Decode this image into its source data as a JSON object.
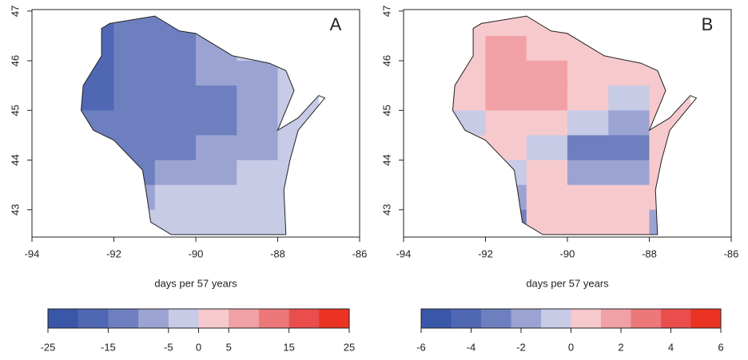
{
  "chart_data": [
    {
      "type": "map",
      "label": "A",
      "xlabel": "days per 57 years",
      "xlim": [
        -94,
        -86
      ],
      "ylim": [
        42.45,
        47.03
      ],
      "xticks": [
        -94,
        -92,
        -90,
        -88,
        -86
      ],
      "yticks": [
        43,
        44,
        45,
        46,
        47
      ],
      "cell_lon": [
        -92.5,
        -91.5,
        -90.5,
        -89.5,
        -88.5,
        -87.5
      ],
      "cell_lat": [
        46.75,
        46.25,
        45.75,
        45.25,
        44.75,
        44.25,
        43.75,
        43.25,
        42.75
      ],
      "values": [
        [
          -18,
          -15,
          -12,
          -8,
          -5,
          -3
        ],
        [
          -20,
          -15,
          -12,
          -8,
          -5,
          0
        ],
        [
          -20,
          -15,
          -13,
          -10,
          -7,
          -3
        ],
        [
          -18,
          -15,
          -13,
          -12,
          -8,
          -3
        ],
        [
          -15,
          -15,
          -14,
          -12,
          -8,
          -3
        ],
        [
          -15,
          -15,
          -12,
          -10,
          -7,
          -3
        ],
        [
          -12,
          -12,
          -10,
          -8,
          -5,
          -3
        ],
        [
          -10,
          -8,
          -5,
          -5,
          -3,
          -3
        ],
        [
          -5,
          -5,
          -3,
          -3,
          -3,
          -3
        ]
      ],
      "colorbar": {
        "lim": [
          -25,
          25
        ],
        "ticks": [
          -25,
          -15,
          -5,
          0,
          5,
          15,
          25
        ],
        "colors": [
          "#3a56a8",
          "#5068b4",
          "#6e7fc0",
          "#9aa3d2",
          "#c8cbe6",
          "#f6c9cd",
          "#f1a0a5",
          "#ec7879",
          "#e94e4c",
          "#ea3323"
        ]
      }
    },
    {
      "type": "map",
      "label": "B",
      "xlabel": "days per 57 years",
      "xlim": [
        -94,
        -86
      ],
      "ylim": [
        42.45,
        47.03
      ],
      "xticks": [
        -94,
        -92,
        -90,
        -88,
        -86
      ],
      "yticks": [
        43,
        44,
        45,
        46,
        47
      ],
      "cell_lon": [
        -92.5,
        -91.5,
        -90.5,
        -89.5,
        -88.5,
        -87.5
      ],
      "cell_lat": [
        46.75,
        46.25,
        45.75,
        45.25,
        44.75,
        44.25,
        43.75,
        43.25,
        42.75
      ],
      "values": [
        [
          0,
          1,
          1,
          0.5,
          0.5,
          0
        ],
        [
          1,
          2,
          1,
          1,
          0.5,
          1
        ],
        [
          1,
          2,
          2,
          1,
          0.5,
          0.5
        ],
        [
          0,
          2,
          2,
          0,
          -1,
          0.5
        ],
        [
          -1,
          1,
          1,
          -1,
          -2,
          0
        ],
        [
          0,
          0,
          -1,
          -3,
          -3,
          1
        ],
        [
          -1,
          -1,
          0,
          -2,
          -2,
          1
        ],
        [
          -3,
          -2,
          0,
          0,
          1,
          0
        ],
        [
          -4,
          -3,
          0,
          1,
          0,
          -2
        ]
      ],
      "colorbar": {
        "lim": [
          -6,
          6
        ],
        "ticks": [
          -6,
          -4,
          -2,
          0,
          2,
          4,
          6
        ],
        "colors": [
          "#3a56a8",
          "#5068b4",
          "#6e7fc0",
          "#9aa3d2",
          "#c8cbe6",
          "#f6c9cd",
          "#f1a0a5",
          "#ec7879",
          "#e94e4c",
          "#ea3323"
        ]
      }
    }
  ]
}
